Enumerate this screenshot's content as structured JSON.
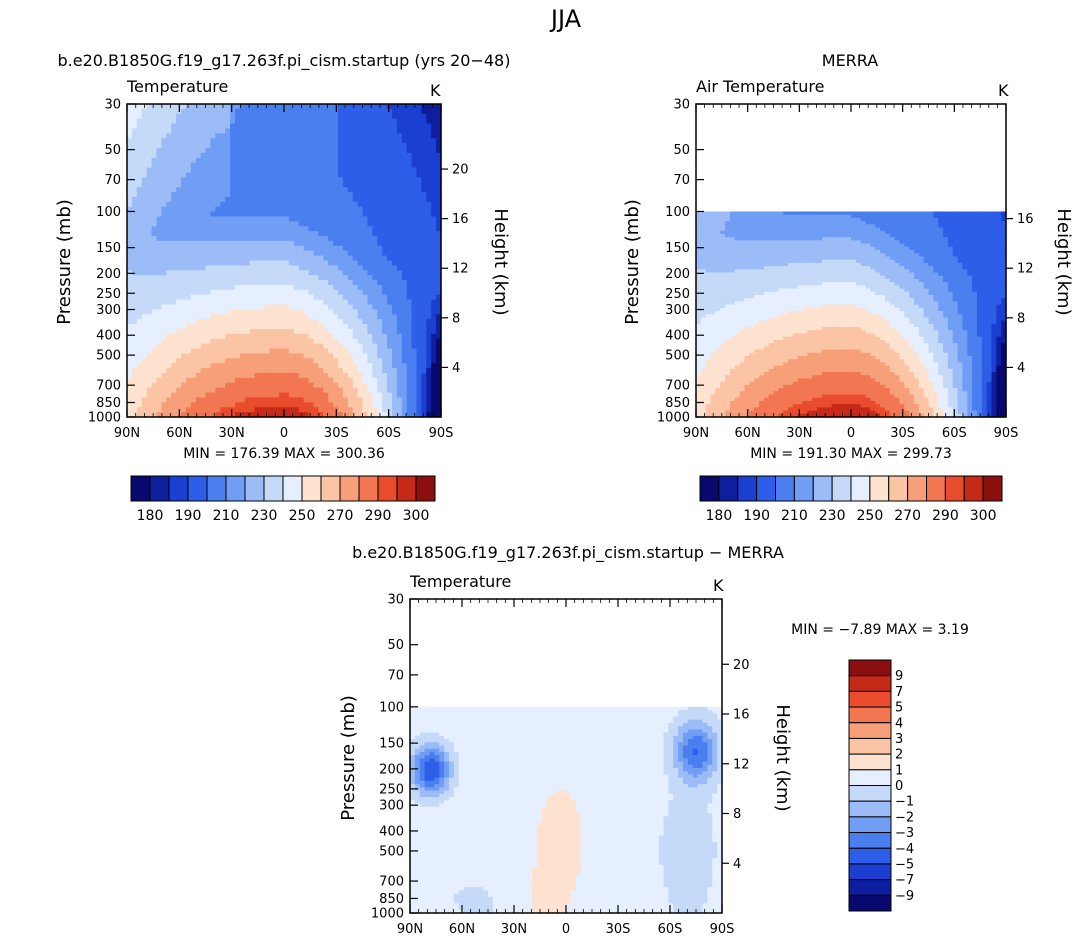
{
  "page": {
    "season": "JJA"
  },
  "chart_data": [
    {
      "type": "heatmap",
      "title": "b.e20.B1850G.f19_g17.263f.pi_cism.startup (yrs 20−48)",
      "subtitle_left": "Temperature",
      "unit": "K",
      "ylabel": "Pressure (mb)",
      "ylabel_right": "Height (km)",
      "x_ticks": [
        "90N",
        "60N",
        "30N",
        "0",
        "30S",
        "60S",
        "90S"
      ],
      "y_ticks": [
        "30",
        "50",
        "70",
        "100",
        "150",
        "200",
        "250",
        "300",
        "400",
        "500",
        "700",
        "850",
        "1000"
      ],
      "y_ticks_right": [
        "20",
        "16",
        "12",
        "8",
        "4"
      ],
      "ylim": [
        1000,
        30
      ],
      "stats": "MIN = 176.39   MAX = 300.36",
      "min": 176.39,
      "max": 300.36,
      "colorbar_labels": [
        "180",
        "190",
        "210",
        "230",
        "250",
        "270",
        "290",
        "300"
      ]
    },
    {
      "type": "heatmap",
      "title": "MERRA",
      "subtitle_left": "Air Temperature",
      "unit": "K",
      "ylabel": "Pressure (mb)",
      "ylabel_right": "Height (km)",
      "x_ticks": [
        "90N",
        "60N",
        "30N",
        "0",
        "30S",
        "60S",
        "90S"
      ],
      "y_ticks": [
        "30",
        "50",
        "70",
        "100",
        "150",
        "200",
        "250",
        "300",
        "400",
        "500",
        "700",
        "850",
        "1000"
      ],
      "y_ticks_right": [
        "16",
        "12",
        "8",
        "4"
      ],
      "ylim": [
        1000,
        30
      ],
      "data_top": 100,
      "stats": "MIN = 191.30   MAX = 299.73",
      "min": 191.3,
      "max": 299.73,
      "colorbar_labels": [
        "180",
        "190",
        "210",
        "230",
        "250",
        "270",
        "290",
        "300"
      ]
    },
    {
      "type": "heatmap",
      "title": "b.e20.B1850G.f19_g17.263f.pi_cism.startup − MERRA",
      "subtitle_left": "Temperature",
      "unit": "K",
      "ylabel": "Pressure (mb)",
      "ylabel_right": "Height (km)",
      "x_ticks": [
        "90N",
        "60N",
        "30N",
        "0",
        "30S",
        "60S",
        "90S"
      ],
      "y_ticks": [
        "30",
        "50",
        "70",
        "100",
        "150",
        "200",
        "250",
        "300",
        "400",
        "500",
        "700",
        "850",
        "1000"
      ],
      "y_ticks_right": [
        "20",
        "16",
        "12",
        "8",
        "4"
      ],
      "ylim": [
        1000,
        30
      ],
      "data_top": 100,
      "stats": "MIN =    −7.89   MAX =     3.19",
      "min": -7.89,
      "max": 3.19,
      "colorbar_labels": [
        "9",
        "7",
        "5",
        "4",
        "3",
        "2",
        "1",
        "0",
        "−1",
        "−2",
        "−3",
        "−4",
        "−5",
        "−7",
        "−9"
      ]
    }
  ],
  "colors": {
    "abs_scale": [
      "#08086e",
      "#0d1f9f",
      "#1a3fd1",
      "#2e5ee8",
      "#4b7ff0",
      "#719ef5",
      "#9cbcf7",
      "#c5d9f8",
      "#e6efff",
      "#fde3cf",
      "#fbc4a4",
      "#f79f78",
      "#f27652",
      "#e84c2c",
      "#c52a18",
      "#8c0f0f"
    ],
    "diff_scale": [
      "#8c0f0f",
      "#c52a18",
      "#e84c2c",
      "#f27652",
      "#f79f78",
      "#fbc4a4",
      "#fde3cf",
      "#e6efff",
      "#c5d9f8",
      "#9cbcf7",
      "#719ef5",
      "#4b7ff0",
      "#2e5ee8",
      "#1a3fd1",
      "#0d1f9f",
      "#08086e"
    ]
  }
}
